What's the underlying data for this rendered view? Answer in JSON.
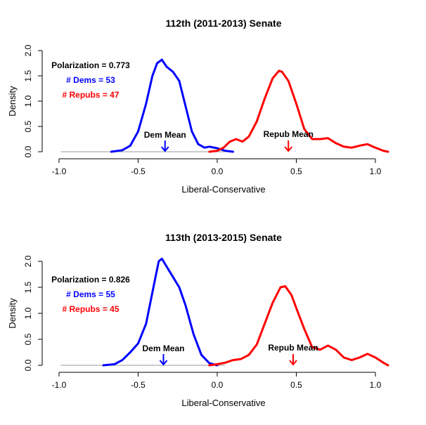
{
  "chart_data": [
    {
      "type": "line",
      "title": "112th (2011-2013) Senate",
      "xlabel": "Liberal-Conservative",
      "ylabel": "Density",
      "xlim": [
        -1.0,
        1.08
      ],
      "ylim": [
        0,
        2.0
      ],
      "xticks": [
        -1.0,
        -0.5,
        0.0,
        0.5,
        1.0
      ],
      "xtick_labels": [
        "-1.0",
        "-0.5",
        "0.0",
        "0.5",
        "1.0"
      ],
      "yticks": [
        0.0,
        0.5,
        1.0,
        1.5,
        2.0
      ],
      "ytick_labels": [
        "0.0",
        "0.5",
        "1.0",
        "1.5",
        "2.0"
      ],
      "annotations": {
        "polarization": "Polarization = 0.773",
        "dems": "# Dems = 53",
        "repubs": "# Repubs = 47",
        "dem_mean_label": "Dem Mean",
        "repub_mean_label": "Repub Mean"
      },
      "dem_mean": -0.33,
      "repub_mean": 0.45,
      "colors": {
        "dem": "#0000ff",
        "repub": "#ff0000",
        "baseline": "#999999"
      },
      "series": [
        {
          "x": [
            -0.67,
            -0.6,
            -0.55,
            -0.5,
            -0.45,
            -0.41,
            -0.38,
            -0.35,
            -0.32,
            -0.28,
            -0.24,
            -0.2,
            -0.16,
            -0.12,
            -0.08,
            -0.05,
            0.0,
            0.05,
            0.1
          ],
          "y": [
            0.0,
            0.03,
            0.12,
            0.4,
            0.95,
            1.5,
            1.75,
            1.82,
            1.68,
            1.58,
            1.4,
            0.9,
            0.4,
            0.15,
            0.08,
            0.1,
            0.07,
            0.02,
            0.0
          ]
        },
        {
          "x": [
            -0.05,
            0.0,
            0.04,
            0.08,
            0.12,
            0.16,
            0.2,
            0.25,
            0.3,
            0.35,
            0.39,
            0.41,
            0.45,
            0.5,
            0.55,
            0.6,
            0.65,
            0.7,
            0.75,
            0.8,
            0.85,
            0.9,
            0.95,
            1.0,
            1.05,
            1.08
          ],
          "y": [
            0.0,
            0.02,
            0.08,
            0.2,
            0.25,
            0.2,
            0.3,
            0.6,
            1.05,
            1.45,
            1.6,
            1.58,
            1.4,
            0.95,
            0.45,
            0.25,
            0.25,
            0.27,
            0.17,
            0.1,
            0.08,
            0.12,
            0.15,
            0.08,
            0.02,
            0.0
          ]
        }
      ]
    },
    {
      "type": "line",
      "title": "113th (2013-2015) Senate",
      "xlabel": "Liberal-Conservative",
      "ylabel": "Density",
      "xlim": [
        -1.0,
        1.08
      ],
      "ylim": [
        0,
        2.0
      ],
      "xticks": [
        -1.0,
        -0.5,
        0.0,
        0.5,
        1.0
      ],
      "xtick_labels": [
        "-1.0",
        "-0.5",
        "0.0",
        "0.5",
        "1.0"
      ],
      "yticks": [
        0.0,
        0.5,
        1.0,
        1.5,
        2.0
      ],
      "ytick_labels": [
        "0.0",
        "0.5",
        "1.0",
        "1.5",
        "2.0"
      ],
      "annotations": {
        "polarization": "Polarization = 0.826",
        "dems": "# Dems = 55",
        "repubs": "# Repubs = 45",
        "dem_mean_label": "Dem Mean",
        "repub_mean_label": "Repub Mean"
      },
      "dem_mean": -0.34,
      "repub_mean": 0.48,
      "colors": {
        "dem": "#0000ff",
        "repub": "#ff0000",
        "baseline": "#999999"
      },
      "series": [
        {
          "x": [
            -0.72,
            -0.65,
            -0.6,
            -0.55,
            -0.5,
            -0.45,
            -0.4,
            -0.37,
            -0.35,
            -0.32,
            -0.28,
            -0.24,
            -0.2,
            -0.15,
            -0.1,
            -0.05,
            0.0
          ],
          "y": [
            0.0,
            0.02,
            0.1,
            0.25,
            0.42,
            0.8,
            1.55,
            2.0,
            2.05,
            1.9,
            1.7,
            1.5,
            1.15,
            0.6,
            0.2,
            0.04,
            0.0
          ]
        },
        {
          "x": [
            -0.05,
            0.0,
            0.05,
            0.1,
            0.15,
            0.2,
            0.25,
            0.3,
            0.35,
            0.4,
            0.43,
            0.47,
            0.5,
            0.55,
            0.6,
            0.65,
            0.7,
            0.75,
            0.8,
            0.85,
            0.9,
            0.95,
            1.0,
            1.05,
            1.08
          ],
          "y": [
            0.0,
            0.02,
            0.05,
            0.1,
            0.12,
            0.2,
            0.4,
            0.8,
            1.2,
            1.5,
            1.52,
            1.35,
            1.1,
            0.7,
            0.35,
            0.3,
            0.38,
            0.3,
            0.15,
            0.1,
            0.15,
            0.22,
            0.15,
            0.05,
            0.0
          ]
        }
      ]
    }
  ]
}
